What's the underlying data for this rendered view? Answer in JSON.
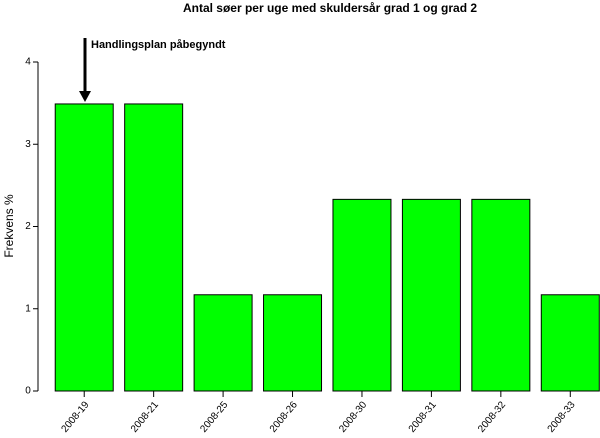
{
  "chart_data": {
    "type": "bar",
    "title": "Antal søer per uge med skuldersår grad 1 og grad 2",
    "y_label": "Frekvens %",
    "annotation": "Handlingsplan påbegyndt",
    "categories": [
      "2008-19",
      "2008-21",
      "2008-25",
      "2008-26",
      "2008-30",
      "2008-31",
      "2008-32",
      "2008-33"
    ],
    "values": [
      3.49,
      3.49,
      1.17,
      1.17,
      2.33,
      2.33,
      2.33,
      1.17
    ],
    "color": "#00ff00",
    "ylim": [
      0,
      4
    ],
    "yticks": [
      0,
      1,
      2,
      3,
      4
    ],
    "grid": false
  }
}
